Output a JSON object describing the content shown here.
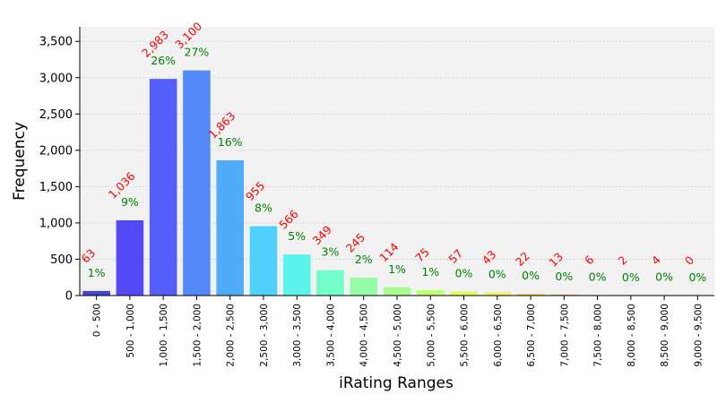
{
  "chart_data": {
    "type": "bar",
    "title": "",
    "xlabel": "iRating Ranges",
    "ylabel": "Frequency",
    "ylim": [
      0,
      3700
    ],
    "yticks": [
      0,
      500,
      1000,
      1500,
      2000,
      2500,
      3000,
      3500
    ],
    "ytick_labels": [
      "0",
      "500",
      "1,000",
      "1,500",
      "2,000",
      "2,500",
      "3,000",
      "3,500"
    ],
    "grid": true,
    "legend": "none",
    "categories": [
      "0 - 500",
      "500 - 1,000",
      "1,000 - 1,500",
      "1,500 - 2,000",
      "2,000 - 2,500",
      "2,500 - 3,000",
      "3,000 - 3,500",
      "3,500 - 4,000",
      "4,000 - 4,500",
      "4,500 - 5,000",
      "5,000 - 5,500",
      "5,500 - 6,000",
      "6,000 - 6,500",
      "6,500 - 7,000",
      "7,000 - 7,500",
      "7,500 - 8,000",
      "8,000 - 8,500",
      "8,500 - 9,000",
      "9,000 - 9,500"
    ],
    "values": [
      63,
      1036,
      2983,
      3100,
      1863,
      955,
      566,
      349,
      245,
      114,
      75,
      57,
      43,
      22,
      13,
      6,
      2,
      4,
      0
    ],
    "value_labels": [
      "63",
      "1,036",
      "2,983",
      "3,100",
      "1,863",
      "955",
      "566",
      "349",
      "245",
      "114",
      "75",
      "57",
      "43",
      "22",
      "13",
      "6",
      "2",
      "4",
      "0"
    ],
    "percent_labels": [
      "1%",
      "9%",
      "26%",
      "27%",
      "16%",
      "8%",
      "5%",
      "3%",
      "2%",
      "1%",
      "1%",
      "0%",
      "0%",
      "0%",
      "0%",
      "0%",
      "0%",
      "0%",
      "0%"
    ],
    "bar_colors": [
      "#3a3acc",
      "#4b40f5",
      "#4a55fb",
      "#4a82fb",
      "#47a7fb",
      "#47cffb",
      "#53f2ea",
      "#6dfcc6",
      "#8ffca2",
      "#a4fb88",
      "#c3fb6f",
      "#e1fa5c",
      "#f7f055",
      "#fcd04a",
      "#fdae40",
      "#fd8a36",
      "#fd622c",
      "#fd3a24",
      "#fd1e1e"
    ],
    "colors": {
      "count_label": "#ff0000",
      "percent_label": "#008000",
      "grid": "#c8c8c8",
      "plot_bg": "#f2f2f2"
    }
  }
}
